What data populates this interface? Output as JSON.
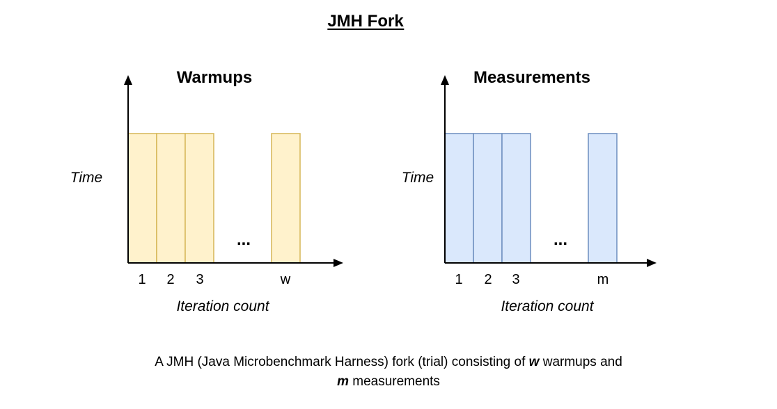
{
  "title": "JMH Fork",
  "warmups": {
    "title": "Warmups",
    "ylabel": "Time",
    "xlabel": "Iteration count",
    "ticks": [
      "1",
      "2",
      "3"
    ],
    "ellipsis": "...",
    "last_tick": "w",
    "fill": "#fff2cc",
    "stroke": "#d6b656"
  },
  "measurements": {
    "title": "Measurements",
    "ylabel": "Time",
    "xlabel": "Iteration count",
    "ticks": [
      "1",
      "2",
      "3"
    ],
    "ellipsis": "...",
    "last_tick": "m",
    "fill": "#dae8fc",
    "stroke": "#6c8ebf"
  },
  "caption": {
    "part1": "A JMH (Java Microbenchmark Harness) fork (trial) consisting of ",
    "w": "w",
    "part2": " warmups and",
    "m": "m",
    "part3": " measurements"
  }
}
